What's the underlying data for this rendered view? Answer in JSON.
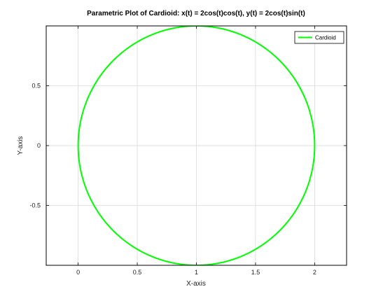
{
  "chart_data": {
    "type": "line",
    "title": "Parametric Plot of Cardioid: x(t) = 2cos(t)cos(t), y(t) = 2cos(t)sin(t)",
    "xlabel": "X-axis",
    "ylabel": "Y-axis",
    "xlim": [
      -0.27,
      2.27
    ],
    "ylim": [
      -1.0,
      1.0
    ],
    "xticks": [
      0,
      0.5,
      1,
      1.5,
      2
    ],
    "xtick_labels": [
      "0",
      "0.5",
      "1",
      "1.5",
      "2"
    ],
    "yticks": [
      -0.5,
      0,
      0.5
    ],
    "ytick_labels": [
      "-0.5",
      "0",
      "0.5"
    ],
    "grid": true,
    "legend": "top-right",
    "series": [
      {
        "name": "Cardioid",
        "color": "#00ff00",
        "parametric": {
          "x": "2cos(t)cos(t)",
          "y": "2cos(t)sin(t)",
          "t_range": [
            0,
            6.283185307
          ]
        },
        "x": [
          2.0,
          1.9239,
          1.7071,
          1.3827,
          1.0,
          0.6173,
          0.2929,
          0.0761,
          0.0,
          0.0761,
          0.2929,
          0.6173,
          1.0,
          1.3827,
          1.7071,
          1.9239,
          2.0
        ],
        "y": [
          0.0,
          0.3827,
          0.7071,
          0.9239,
          1.0,
          0.9239,
          0.7071,
          0.3827,
          0.0,
          -0.3827,
          -0.7071,
          -0.9239,
          -1.0,
          -0.9239,
          -0.7071,
          -0.3827,
          0.0
        ]
      }
    ]
  }
}
